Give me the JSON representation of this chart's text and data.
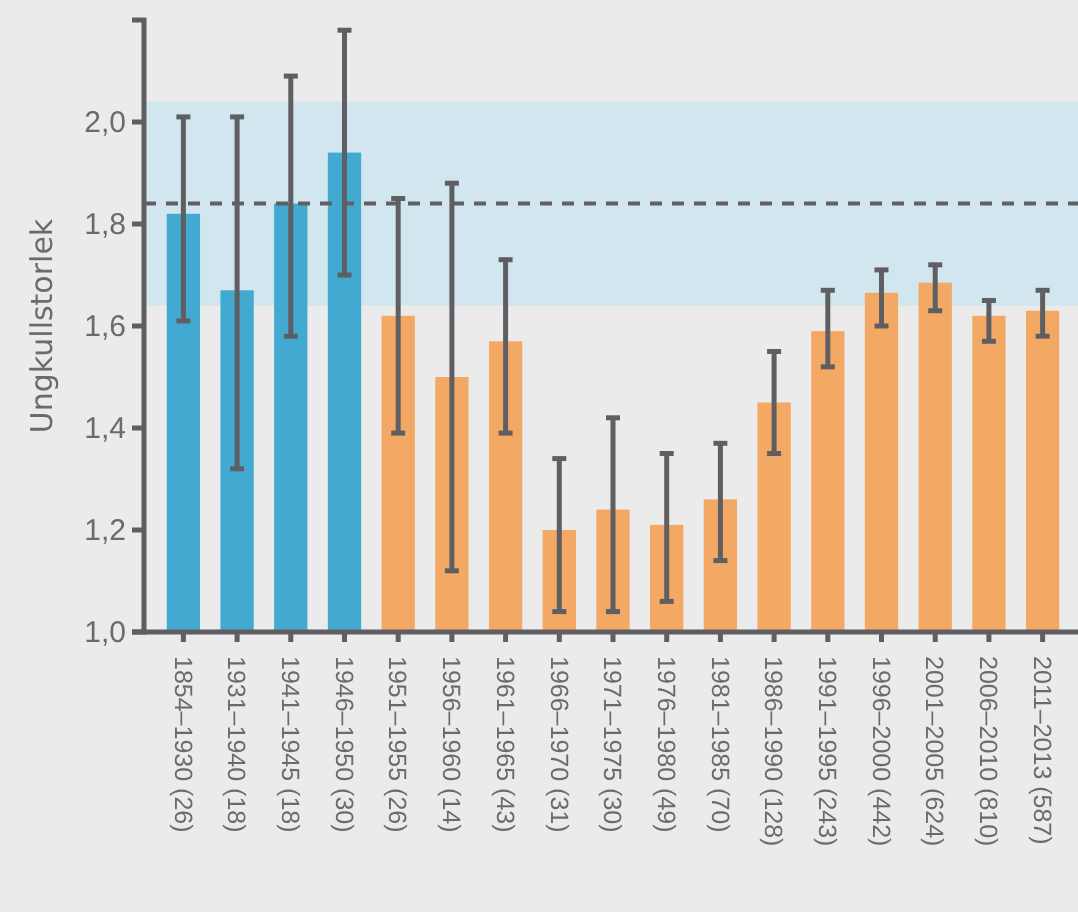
{
  "chart_data": {
    "type": "bar",
    "ylabel": "Ungkullstorlek",
    "categories": [
      "1854–1930 (26)",
      "1931–1940 (18)",
      "1941–1945 (18)",
      "1946–1950 (30)",
      "1951–1955 (26)",
      "1956–1960 (14)",
      "1961–1965 (43)",
      "1966–1970 (31)",
      "1971–1975 (30)",
      "1976–1980 (49)",
      "1981–1985 (70)",
      "1986–1990 (128)",
      "1991–1995 (243)",
      "1996–2000 (442)",
      "2001–2005 (624)",
      "2006–2010 (810)",
      "2011–2013 (587)"
    ],
    "values": [
      1.82,
      1.67,
      1.84,
      1.94,
      1.62,
      1.5,
      1.57,
      1.2,
      1.24,
      1.21,
      1.26,
      1.45,
      1.59,
      1.665,
      1.685,
      1.62,
      1.63
    ],
    "colors": [
      "#42a9d1",
      "#42a9d1",
      "#42a9d1",
      "#42a9d1",
      "#f3a963",
      "#f3a963",
      "#f3a963",
      "#f3a963",
      "#f3a963",
      "#f3a963",
      "#f3a963",
      "#f3a963",
      "#f3a963",
      "#f3a963",
      "#f3a963",
      "#f3a963",
      "#f3a963"
    ],
    "errors": [
      [
        1.61,
        2.01
      ],
      [
        1.32,
        2.01
      ],
      [
        1.58,
        2.09
      ],
      [
        1.7,
        2.18
      ],
      [
        1.39,
        1.85
      ],
      [
        1.12,
        1.88
      ],
      [
        1.39,
        1.73
      ],
      [
        1.04,
        1.34
      ],
      [
        1.04,
        1.42
      ],
      [
        1.06,
        1.35
      ],
      [
        1.14,
        1.37
      ],
      [
        1.35,
        1.55
      ],
      [
        1.52,
        1.67
      ],
      [
        1.6,
        1.71
      ],
      [
        1.63,
        1.72
      ],
      [
        1.57,
        1.65
      ],
      [
        1.58,
        1.67
      ]
    ],
    "ylim": [
      1.0,
      2.2
    ],
    "yticks": [
      {
        "value": 1.0,
        "label": "1,0"
      },
      {
        "value": 1.2,
        "label": "1,2"
      },
      {
        "value": 1.4,
        "label": "1,4"
      },
      {
        "value": 1.6,
        "label": "1,6"
      },
      {
        "value": 1.8,
        "label": "1,8"
      },
      {
        "value": 2.0,
        "label": "2,0"
      }
    ],
    "bands": [
      {
        "axis": "y",
        "from": 1.64,
        "to": 2.04,
        "color": "#d2e6ef"
      }
    ],
    "ref_lines": [
      {
        "axis": "y",
        "value": 1.84,
        "color": "#606064",
        "line_style": "dashed"
      }
    ],
    "grid": false
  }
}
